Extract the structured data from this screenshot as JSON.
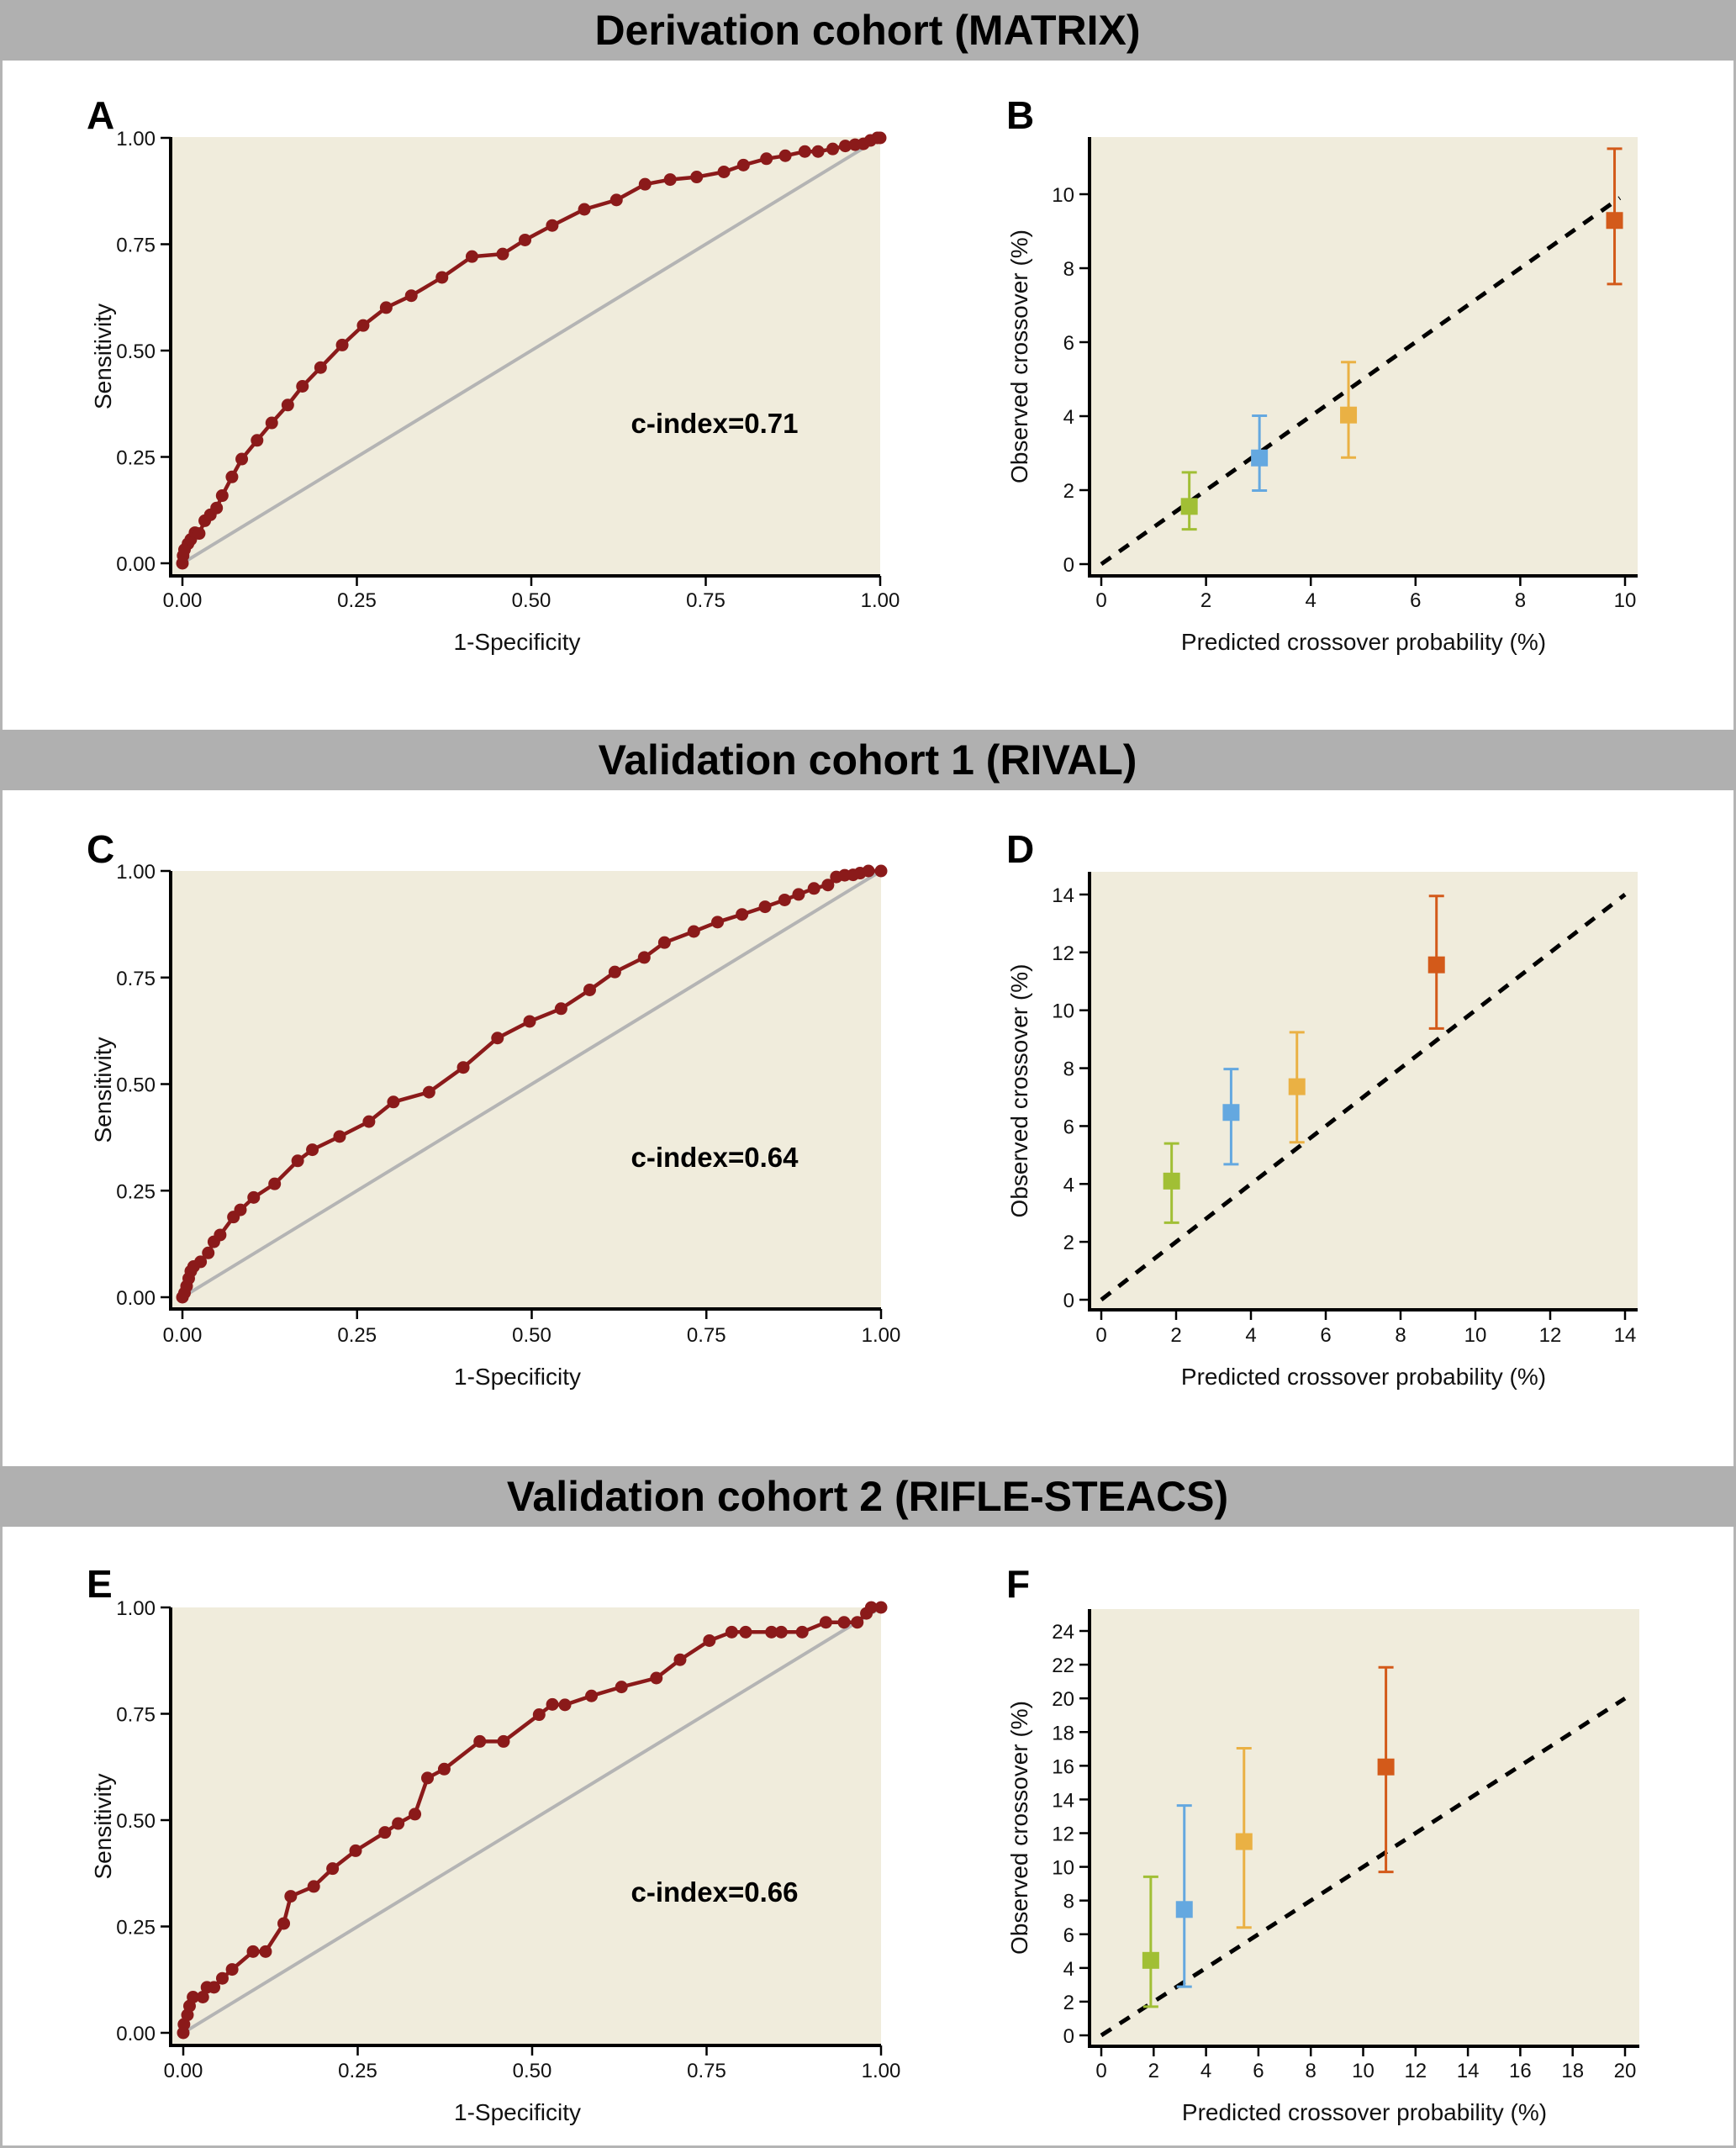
{
  "figure": {
    "sections": [
      {
        "title": "Derivation cohort (MATRIX)"
      },
      {
        "title": "Validation cohort 1 (RIVAL)"
      },
      {
        "title": "Validation cohort 2 (RIFLE-STEACS)"
      }
    ],
    "colors": {
      "header_bg": "#b0b0b0",
      "plot_bg": "#f0ecdc",
      "roc": "#8b1a1a",
      "reference": "#b4b4b4",
      "group1": "#a1bf35",
      "group2": "#64a8e0",
      "group3": "#eab144",
      "group4": "#d35a1a"
    }
  },
  "chart_data": [
    {
      "panel": "A",
      "section": "Derivation cohort (MATRIX)",
      "type": "line",
      "title": "",
      "xlabel": "1-Specificity",
      "ylabel": "Sensitivity",
      "xlim": [
        0,
        1
      ],
      "ylim": [
        0,
        1
      ],
      "xticks": [
        "0.00",
        "0.25",
        "0.50",
        "0.75",
        "1.00"
      ],
      "yticks": [
        "0.00",
        "0.25",
        "0.50",
        "0.75",
        "1.00"
      ],
      "annotation": "c-index=0.71",
      "reference_line": [
        [
          0,
          0
        ],
        [
          1,
          1
        ]
      ],
      "grid": false,
      "series": [
        {
          "name": "ROC",
          "x": [
            0,
            0.001,
            0.003,
            0.008,
            0.012,
            0.018,
            0.024,
            0.032,
            0.04,
            0.049,
            0.057,
            0.071,
            0.085,
            0.107,
            0.128,
            0.151,
            0.172,
            0.198,
            0.229,
            0.259,
            0.292,
            0.328,
            0.372,
            0.415,
            0.459,
            0.491,
            0.53,
            0.576,
            0.622,
            0.663,
            0.699,
            0.737,
            0.776,
            0.804,
            0.837,
            0.864,
            0.892,
            0.911,
            0.932,
            0.95,
            0.964,
            0.976,
            0.986,
            0.996,
            1.0
          ],
          "y": [
            0,
            0.018,
            0.032,
            0.046,
            0.056,
            0.072,
            0.07,
            0.1,
            0.114,
            0.13,
            0.159,
            0.203,
            0.245,
            0.289,
            0.33,
            0.372,
            0.416,
            0.46,
            0.513,
            0.559,
            0.601,
            0.629,
            0.672,
            0.721,
            0.727,
            0.76,
            0.794,
            0.832,
            0.854,
            0.891,
            0.902,
            0.908,
            0.92,
            0.936,
            0.951,
            0.958,
            0.968,
            0.968,
            0.974,
            0.981,
            0.984,
            0.986,
            0.994,
            1.0,
            1.0
          ]
        }
      ]
    },
    {
      "panel": "B",
      "section": "Derivation cohort (MATRIX)",
      "type": "scatter",
      "title": "",
      "xlabel": "Predicted crossover probability (%)",
      "ylabel": "Observed crossover (%)",
      "xlim": [
        0,
        10
      ],
      "ylim": [
        0,
        11.5
      ],
      "xticks": [
        0,
        2,
        4,
        6,
        8,
        10
      ],
      "yticks": [
        0,
        2,
        4,
        6,
        8,
        10
      ],
      "identity_line": [
        [
          0,
          0
        ],
        [
          9.9,
          9.9
        ]
      ],
      "grid": false,
      "points": [
        {
          "group": 1,
          "x": 1.68,
          "y": 1.56,
          "lo": 0.94,
          "hi": 2.48,
          "color": "#a1bf35"
        },
        {
          "group": 2,
          "x": 3.02,
          "y": 2.87,
          "lo": 1.99,
          "hi": 4.01,
          "color": "#64a8e0"
        },
        {
          "group": 3,
          "x": 4.72,
          "y": 4.03,
          "lo": 2.88,
          "hi": 5.46,
          "color": "#eab144"
        },
        {
          "group": 4,
          "x": 9.8,
          "y": 9.29,
          "lo": 7.57,
          "hi": 11.23,
          "color": "#d35a1a"
        }
      ]
    },
    {
      "panel": "C",
      "section": "Validation cohort 1 (RIVAL)",
      "type": "line",
      "title": "",
      "xlabel": "1-Specificity",
      "ylabel": "Sensitivity",
      "xlim": [
        0,
        1
      ],
      "ylim": [
        0,
        1
      ],
      "xticks": [
        "0.00",
        "0.25",
        "0.50",
        "0.75",
        "1.00"
      ],
      "yticks": [
        "0.00",
        "0.25",
        "0.50",
        "0.75",
        "1.00"
      ],
      "annotation": "c-index=0.64",
      "reference_line": [
        [
          0,
          0
        ],
        [
          1,
          1
        ]
      ],
      "grid": false,
      "series": [
        {
          "name": "ROC",
          "x": [
            0,
            0.003,
            0.006,
            0.009,
            0.012,
            0.016,
            0.026,
            0.037,
            0.045,
            0.054,
            0.073,
            0.083,
            0.102,
            0.132,
            0.165,
            0.186,
            0.225,
            0.267,
            0.302,
            0.353,
            0.402,
            0.451,
            0.497,
            0.542,
            0.583,
            0.619,
            0.661,
            0.69,
            0.732,
            0.766,
            0.801,
            0.834,
            0.862,
            0.882,
            0.904,
            0.924,
            0.936,
            0.948,
            0.96,
            0.97,
            0.982,
            1.0
          ],
          "y": [
            0,
            0.01,
            0.026,
            0.044,
            0.061,
            0.072,
            0.083,
            0.104,
            0.13,
            0.146,
            0.188,
            0.205,
            0.234,
            0.266,
            0.32,
            0.346,
            0.377,
            0.412,
            0.458,
            0.481,
            0.539,
            0.608,
            0.647,
            0.677,
            0.721,
            0.763,
            0.797,
            0.832,
            0.858,
            0.88,
            0.898,
            0.916,
            0.932,
            0.945,
            0.959,
            0.967,
            0.986,
            0.99,
            0.991,
            0.995,
            1.0,
            1.0
          ]
        }
      ]
    },
    {
      "panel": "D",
      "section": "Validation cohort 1 (RIVAL)",
      "type": "scatter",
      "title": "",
      "xlabel": "Predicted crossover probability (%)",
      "ylabel": "Observed crossover (%)",
      "xlim": [
        0,
        14
      ],
      "ylim": [
        0,
        14.5
      ],
      "xticks": [
        0,
        2,
        4,
        6,
        8,
        10,
        12,
        14
      ],
      "yticks": [
        0,
        2,
        4,
        6,
        8,
        10,
        12,
        14
      ],
      "identity_line": [
        [
          0,
          0
        ],
        [
          14,
          14
        ]
      ],
      "grid": false,
      "points": [
        {
          "group": 1,
          "x": 1.88,
          "y": 4.1,
          "lo": 2.66,
          "hi": 5.4,
          "color": "#a1bf35"
        },
        {
          "group": 2,
          "x": 3.47,
          "y": 6.47,
          "lo": 4.68,
          "hi": 7.97,
          "color": "#64a8e0"
        },
        {
          "group": 3,
          "x": 5.23,
          "y": 7.36,
          "lo": 5.44,
          "hi": 9.24,
          "color": "#eab144"
        },
        {
          "group": 4,
          "x": 8.96,
          "y": 11.57,
          "lo": 9.37,
          "hi": 13.95,
          "color": "#d35a1a"
        }
      ]
    },
    {
      "panel": "E",
      "section": "Validation cohort 2 (RIFLE-STEACS)",
      "type": "line",
      "title": "",
      "xlabel": "1-Specificity",
      "ylabel": "Sensitivity",
      "xlim": [
        0,
        1
      ],
      "ylim": [
        0,
        1
      ],
      "xticks": [
        "0.00",
        "0.25",
        "0.50",
        "0.75",
        "1.00"
      ],
      "yticks": [
        "0.00",
        "0.25",
        "0.50",
        "0.75",
        "1.00"
      ],
      "annotation": "c-index=0.66",
      "reference_line": [
        [
          0,
          0
        ],
        [
          1,
          1
        ]
      ],
      "grid": false,
      "series": [
        {
          "name": "ROC",
          "x": [
            0,
            0.001,
            0.006,
            0.009,
            0.014,
            0.028,
            0.034,
            0.044,
            0.056,
            0.07,
            0.1,
            0.118,
            0.144,
            0.154,
            0.187,
            0.214,
            0.247,
            0.289,
            0.308,
            0.332,
            0.35,
            0.374,
            0.425,
            0.459,
            0.51,
            0.529,
            0.547,
            0.585,
            0.628,
            0.678,
            0.712,
            0.754,
            0.786,
            0.806,
            0.843,
            0.857,
            0.887,
            0.921,
            0.947,
            0.966,
            0.979,
            0.986,
            1.0
          ],
          "y": [
            0,
            0.02,
            0.042,
            0.063,
            0.084,
            0.084,
            0.107,
            0.107,
            0.128,
            0.149,
            0.191,
            0.191,
            0.257,
            0.321,
            0.344,
            0.386,
            0.428,
            0.471,
            0.492,
            0.514,
            0.599,
            0.62,
            0.685,
            0.685,
            0.748,
            0.772,
            0.771,
            0.792,
            0.813,
            0.834,
            0.877,
            0.922,
            0.942,
            0.942,
            0.942,
            0.942,
            0.942,
            0.965,
            0.965,
            0.965,
            0.986,
            1.0,
            1.0
          ]
        }
      ]
    },
    {
      "panel": "F",
      "section": "Validation cohort 2 (RIFLE-STEACS)",
      "type": "scatter",
      "title": "",
      "xlabel": "Predicted crossover probability (%)",
      "ylabel": "Observed crossover (%)",
      "xlim": [
        0,
        20
      ],
      "ylim": [
        0,
        25.3
      ],
      "xticks": [
        0,
        2,
        4,
        6,
        8,
        10,
        12,
        14,
        16,
        18,
        20
      ],
      "yticks": [
        0,
        2,
        4,
        6,
        8,
        10,
        12,
        14,
        16,
        18,
        20,
        22,
        24
      ],
      "identity_line": [
        [
          0,
          0
        ],
        [
          20,
          20
        ]
      ],
      "grid": false,
      "points": [
        {
          "group": 1,
          "x": 1.89,
          "y": 4.45,
          "lo": 1.7,
          "hi": 9.41,
          "color": "#a1bf35"
        },
        {
          "group": 2,
          "x": 3.17,
          "y": 7.47,
          "lo": 2.89,
          "hi": 13.64,
          "color": "#64a8e0"
        },
        {
          "group": 3,
          "x": 5.45,
          "y": 11.5,
          "lo": 6.4,
          "hi": 17.04,
          "color": "#eab144"
        },
        {
          "group": 4,
          "x": 10.87,
          "y": 15.93,
          "lo": 9.7,
          "hi": 21.84,
          "color": "#d35a1a"
        }
      ]
    }
  ]
}
